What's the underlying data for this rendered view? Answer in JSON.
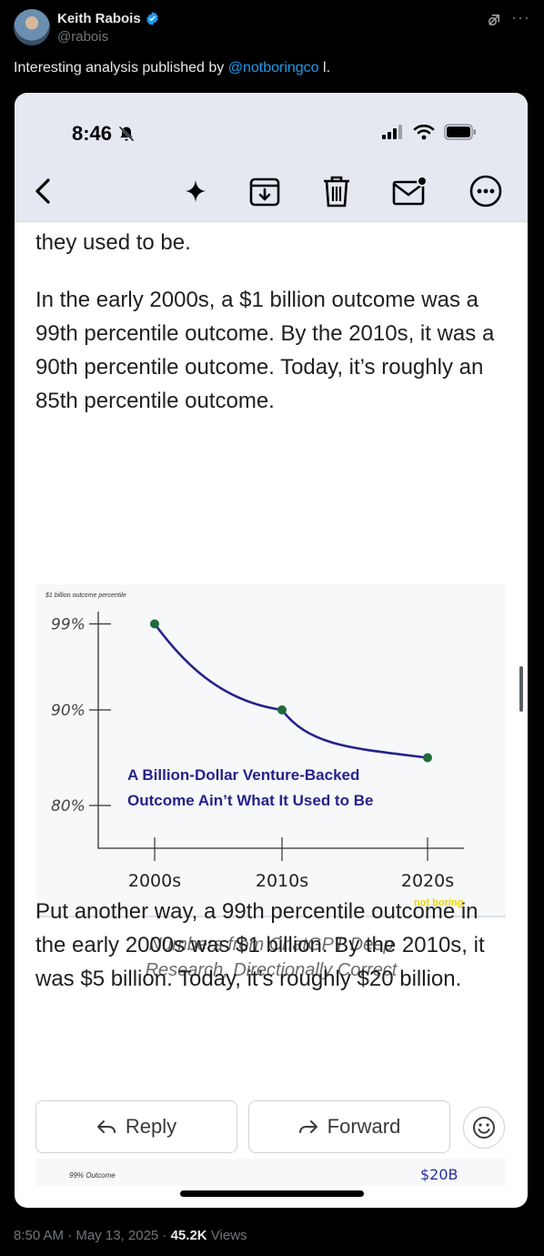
{
  "tweet": {
    "author_name": "Keith Rabois",
    "handle": "@rabois",
    "text_before": "Interesting analysis published by ",
    "mention": "@notboringco",
    "text_after": " l.",
    "timestamp": "8:50 AM · May 13, 2025 · ",
    "views_count": "45.2K",
    "views_label": " Views"
  },
  "phone": {
    "status_time": "8:46",
    "mail": {
      "para_top": "they used to be.",
      "para1": "In the early 2000s, a $1 billion outcome was a 99th percentile outcome. By the 2010s, it was a 90th percentile outcome. Today, it’s roughly an 85th percentile outcome.",
      "caption_line1": "Numbers from ChatGPT Deep",
      "caption_line2": "Research, Directionally Correct",
      "para2": "Put another way, a 99th percentile outcome in the early 2000s was $1 billion. By the 2010s, it was $5 billion. Today, it’s roughly $20 billion.",
      "chart2_label": "99% Outcome",
      "chart2_value": "$20B"
    },
    "buttons": {
      "reply": "Reply",
      "forward": "Forward"
    }
  },
  "chart_data": {
    "type": "line",
    "title": "A Billion-Dollar Venture-Backed Outcome Ain’t What It Used to Be",
    "title_line1": "A Billion-Dollar Venture-Backed",
    "title_line2": "Outcome Ain’t What It Used to Be",
    "ylabel": "$1 billion outcome percentile",
    "watermark": "not boring",
    "categories": [
      "2000s",
      "2010s",
      "2020s"
    ],
    "values": [
      99,
      90,
      85
    ],
    "y_ticks": [
      {
        "value": 99,
        "label": "99%"
      },
      {
        "value": 90,
        "label": "90%"
      },
      {
        "value": 80,
        "label": "80%"
      }
    ],
    "ylim": [
      76,
      100
    ],
    "series_color": "#25228a",
    "point_color": "#1f6b3a"
  }
}
